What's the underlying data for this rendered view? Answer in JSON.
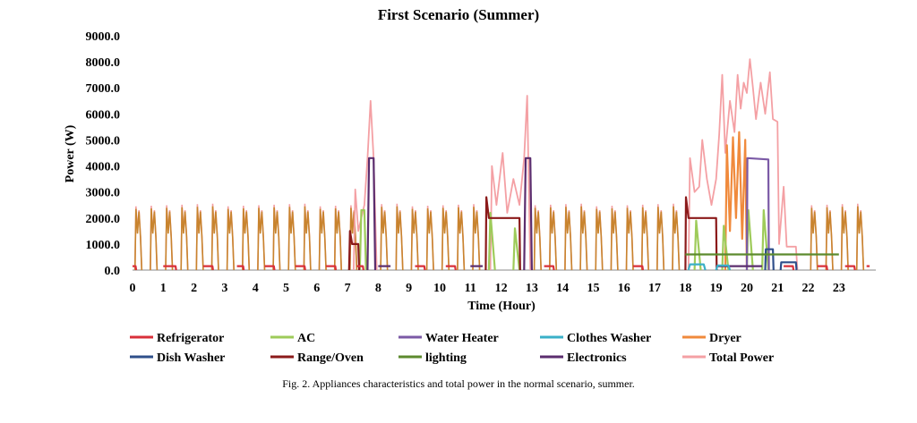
{
  "caption": "Fig. 2. Appliances characteristics and total power in the normal scenario, summer.",
  "chart_data": {
    "type": "line",
    "title": "First Scenario (Summer)",
    "xlabel": "Time (Hour)",
    "ylabel": "Power (W)",
    "xlim": [
      0,
      24
    ],
    "ylim": [
      0,
      9000
    ],
    "x_ticks": [
      0,
      1,
      2,
      3,
      4,
      5,
      6,
      7,
      8,
      9,
      10,
      11,
      12,
      13,
      14,
      15,
      16,
      17,
      18,
      19,
      20,
      21,
      22,
      23
    ],
    "y_ticks": [
      "0.0",
      "1000.0",
      "2000.0",
      "3000.0",
      "4000.0",
      "5000.0",
      "6000.0",
      "7000.0",
      "8000.0",
      "9000.0"
    ],
    "y_tick_values": [
      0,
      1000,
      2000,
      3000,
      4000,
      5000,
      6000,
      7000,
      8000,
      9000
    ],
    "grid": false,
    "legend_position": "bottom",
    "series": [
      {
        "name": "Refrigerator",
        "color": "#d9303a",
        "segments": [
          [
            [
              0,
              150
            ],
            [
              0.1,
              150
            ],
            [
              0.12,
              0
            ]
          ],
          [
            [
              1,
              150
            ],
            [
              1.4,
              150
            ],
            [
              1.42,
              0
            ]
          ],
          [
            [
              2.3,
              150
            ],
            [
              2.6,
              150
            ],
            [
              2.62,
              0
            ]
          ],
          [
            [
              3.4,
              150
            ],
            [
              3.6,
              150
            ],
            [
              3.62,
              0
            ]
          ],
          [
            [
              4.3,
              150
            ],
            [
              4.6,
              150
            ],
            [
              4.62,
              0
            ]
          ],
          [
            [
              5.3,
              150
            ],
            [
              5.6,
              150
            ],
            [
              5.62,
              0
            ]
          ],
          [
            [
              6.3,
              150
            ],
            [
              6.6,
              150
            ],
            [
              6.62,
              0
            ]
          ],
          [
            [
              7.3,
              150
            ],
            [
              7.5,
              150
            ],
            [
              7.52,
              0
            ]
          ],
          [
            [
              9.2,
              150
            ],
            [
              9.5,
              150
            ],
            [
              9.52,
              0
            ]
          ],
          [
            [
              10.2,
              150
            ],
            [
              10.5,
              150
            ],
            [
              10.52,
              0
            ]
          ],
          [
            [
              13.4,
              150
            ],
            [
              13.7,
              150
            ],
            [
              13.72,
              0
            ]
          ],
          [
            [
              16.3,
              150
            ],
            [
              16.6,
              150
            ],
            [
              16.62,
              0
            ]
          ],
          [
            [
              21.2,
              150
            ],
            [
              21.5,
              150
            ],
            [
              21.52,
              0
            ]
          ],
          [
            [
              22.3,
              150
            ],
            [
              22.6,
              150
            ],
            [
              22.62,
              0
            ]
          ],
          [
            [
              23.2,
              150
            ],
            [
              23.5,
              150
            ],
            [
              23.52,
              0
            ]
          ],
          [
            [
              23.9,
              150
            ],
            [
              24,
              150
            ]
          ]
        ]
      },
      {
        "name": "AC",
        "color": "#9ecb5a",
        "segments": [
          [
            [
              7.4,
              0
            ],
            [
              7.45,
              2300
            ],
            [
              7.55,
              2300
            ],
            [
              7.6,
              0
            ]
          ],
          [
            [
              11.6,
              0
            ],
            [
              11.65,
              2200
            ],
            [
              11.8,
              0
            ]
          ],
          [
            [
              12.4,
              0
            ],
            [
              12.45,
              1600
            ],
            [
              12.6,
              0
            ]
          ],
          [
            [
              18.3,
              0
            ],
            [
              18.35,
              1900
            ],
            [
              18.5,
              0
            ]
          ],
          [
            [
              19.2,
              0
            ],
            [
              19.25,
              1700
            ],
            [
              19.4,
              0
            ]
          ],
          [
            [
              20.0,
              0
            ],
            [
              20.05,
              2300
            ],
            [
              20.2,
              0
            ]
          ],
          [
            [
              20.5,
              0
            ],
            [
              20.55,
              2300
            ],
            [
              20.7,
              0
            ]
          ]
        ]
      },
      {
        "name": "Water Heater",
        "color": "#7b5aa6",
        "segments": [
          [
            [
              20,
              0
            ],
            [
              20.02,
              4300
            ],
            [
              20.7,
              4250
            ],
            [
              20.72,
              0
            ]
          ]
        ]
      },
      {
        "name": "Clothes Washer",
        "color": "#3ab0c8",
        "segments": [
          [
            [
              18.1,
              0
            ],
            [
              18.15,
              220
            ],
            [
              18.6,
              220
            ],
            [
              18.65,
              0
            ]
          ],
          [
            [
              19.0,
              0
            ],
            [
              19.05,
              180
            ],
            [
              19.4,
              180
            ],
            [
              19.45,
              0
            ]
          ]
        ]
      },
      {
        "name": "Dryer",
        "color": "#f08a3c",
        "segments": [
          [
            [
              19.3,
              0
            ],
            [
              19.35,
              4800
            ],
            [
              19.45,
              1500
            ],
            [
              19.55,
              5100
            ],
            [
              19.65,
              2000
            ],
            [
              19.75,
              5300
            ],
            [
              19.85,
              1200
            ],
            [
              19.95,
              5000
            ],
            [
              20.0,
              0
            ]
          ]
        ]
      },
      {
        "name": "Dish Washer",
        "color": "#2f4f8a",
        "segments": [
          [
            [
              20.6,
              0
            ],
            [
              20.62,
              800
            ],
            [
              20.85,
              800
            ],
            [
              20.87,
              0
            ]
          ],
          [
            [
              21.1,
              0
            ],
            [
              21.12,
              300
            ],
            [
              21.6,
              300
            ],
            [
              21.62,
              0
            ]
          ]
        ]
      },
      {
        "name": "Range/Oven",
        "color": "#8b1a1a",
        "segments": [
          [
            [
              7.05,
              0
            ],
            [
              7.08,
              1500
            ],
            [
              7.15,
              1000
            ],
            [
              7.35,
              1000
            ],
            [
              7.38,
              0
            ]
          ],
          [
            [
              11.5,
              0
            ],
            [
              11.52,
              2800
            ],
            [
              11.6,
              2000
            ],
            [
              12.6,
              2000
            ],
            [
              12.62,
              0
            ]
          ],
          [
            [
              18.0,
              0
            ],
            [
              18.02,
              2800
            ],
            [
              18.1,
              2000
            ],
            [
              19.0,
              2000
            ],
            [
              19.02,
              0
            ]
          ]
        ]
      },
      {
        "name": "lighting",
        "color": "#5c8a2e",
        "segments": [
          [
            [
              18,
              600
            ],
            [
              23,
              600
            ]
          ]
        ]
      },
      {
        "name": "Electronics",
        "color": "#5b2d6e",
        "segments": [
          [
            [
              7.65,
              0
            ],
            [
              7.7,
              4300
            ],
            [
              7.85,
              4300
            ],
            [
              7.9,
              0
            ]
          ],
          [
            [
              8.0,
              150
            ],
            [
              8.4,
              150
            ]
          ],
          [
            [
              11.0,
              150
            ],
            [
              11.4,
              150
            ]
          ],
          [
            [
              12.75,
              0
            ],
            [
              12.8,
              4300
            ],
            [
              12.95,
              4300
            ],
            [
              13.0,
              0
            ]
          ],
          [
            [
              19.0,
              150
            ],
            [
              20.5,
              150
            ]
          ]
        ]
      },
      {
        "name": "Total Power",
        "color": "#f4a0a4",
        "segments": [
          [
            [
              7.2,
              0
            ],
            [
              7.25,
              3100
            ],
            [
              7.35,
              1500
            ],
            [
              7.55,
              2500
            ],
            [
              7.65,
              4300
            ],
            [
              7.75,
              6500
            ],
            [
              7.85,
              4300
            ],
            [
              7.95,
              0
            ]
          ],
          [
            [
              11.65,
              0
            ],
            [
              11.7,
              4000
            ],
            [
              11.85,
              2500
            ],
            [
              12.05,
              4500
            ],
            [
              12.2,
              2200
            ],
            [
              12.4,
              3500
            ],
            [
              12.6,
              2500
            ],
            [
              12.75,
              4300
            ],
            [
              12.85,
              6700
            ],
            [
              12.95,
              0
            ]
          ],
          [
            [
              18.1,
              0
            ],
            [
              18.15,
              4300
            ],
            [
              18.3,
              3000
            ],
            [
              18.45,
              3200
            ],
            [
              18.55,
              5000
            ],
            [
              18.7,
              3500
            ],
            [
              18.85,
              2500
            ],
            [
              19.0,
              3500
            ],
            [
              19.1,
              5200
            ],
            [
              19.2,
              7500
            ],
            [
              19.3,
              4500
            ],
            [
              19.45,
              6500
            ],
            [
              19.6,
              5300
            ],
            [
              19.7,
              7500
            ],
            [
              19.8,
              6200
            ],
            [
              19.9,
              7200
            ],
            [
              20.0,
              6800
            ],
            [
              20.1,
              8100
            ],
            [
              20.2,
              7000
            ],
            [
              20.3,
              5800
            ],
            [
              20.45,
              7200
            ],
            [
              20.6,
              6000
            ],
            [
              20.75,
              7600
            ],
            [
              20.85,
              5800
            ],
            [
              21.0,
              5700
            ],
            [
              21.05,
              1000
            ],
            [
              21.2,
              3200
            ],
            [
              21.3,
              900
            ],
            [
              21.6,
              900
            ],
            [
              21.65,
              0
            ]
          ]
        ]
      }
    ],
    "periodic": {
      "description_refs": [
        "AC",
        "Total Power"
      ],
      "ac_color": "#c8842e",
      "total_color": "#f4a0a4"
    }
  },
  "legend": [
    {
      "name": "Refrigerator",
      "color": "#d9303a"
    },
    {
      "name": "AC",
      "color": "#9ecb5a"
    },
    {
      "name": "Water Heater",
      "color": "#7b5aa6"
    },
    {
      "name": "Clothes Washer",
      "color": "#3ab0c8"
    },
    {
      "name": "Dryer",
      "color": "#f08a3c"
    },
    {
      "name": "Dish Washer",
      "color": "#2f4f8a"
    },
    {
      "name": "Range/Oven",
      "color": "#8b1a1a"
    },
    {
      "name": "lighting",
      "color": "#5c8a2e"
    },
    {
      "name": "Electronics",
      "color": "#5b2d6e"
    },
    {
      "name": "Total Power",
      "color": "#f4a0a4"
    }
  ]
}
